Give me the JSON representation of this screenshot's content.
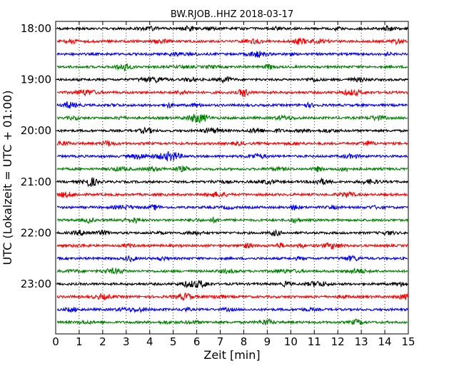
{
  "chart_data": {
    "type": "line",
    "title": "BW.RJOB..HHZ 2018-03-17",
    "xlabel": "Zeit  [min]",
    "ylabel": "UTC (Lokalzeit = UTC + 01:00)",
    "xlim": [
      0,
      15
    ],
    "x_ticks": [
      0,
      1,
      2,
      3,
      4,
      5,
      6,
      7,
      8,
      9,
      10,
      11,
      12,
      13,
      14,
      15
    ],
    "x_tick_labels": [
      "0",
      "1",
      "2",
      "3",
      "4",
      "5",
      "6",
      "7",
      "8",
      "9",
      "10",
      "11",
      "12",
      "13",
      "14",
      "15"
    ],
    "y_tick_labels": [
      "18:00",
      "19:00",
      "20:00",
      "21:00",
      "22:00",
      "23:00"
    ],
    "y_tick_positions": [
      0,
      4,
      8,
      12,
      16,
      20
    ],
    "trace_interval_minutes": 15,
    "trace_count": 24,
    "color_cycle": [
      "#000000",
      "#ff0000",
      "#0000ff",
      "#008000"
    ],
    "grid": "vertical dotted at each minute",
    "seismic_traces": [
      {
        "start": "18:00",
        "color": "#000000"
      },
      {
        "start": "18:15",
        "color": "#ff0000"
      },
      {
        "start": "18:30",
        "color": "#0000ff"
      },
      {
        "start": "18:45",
        "color": "#008000"
      },
      {
        "start": "19:00",
        "color": "#000000"
      },
      {
        "start": "19:15",
        "color": "#ff0000"
      },
      {
        "start": "19:30",
        "color": "#0000ff"
      },
      {
        "start": "19:45",
        "color": "#008000"
      },
      {
        "start": "20:00",
        "color": "#000000"
      },
      {
        "start": "20:15",
        "color": "#ff0000"
      },
      {
        "start": "20:30",
        "color": "#0000ff"
      },
      {
        "start": "20:45",
        "color": "#008000"
      },
      {
        "start": "21:00",
        "color": "#000000"
      },
      {
        "start": "21:15",
        "color": "#ff0000"
      },
      {
        "start": "21:30",
        "color": "#0000ff"
      },
      {
        "start": "21:45",
        "color": "#008000"
      },
      {
        "start": "22:00",
        "color": "#000000"
      },
      {
        "start": "22:15",
        "color": "#ff0000"
      },
      {
        "start": "22:30",
        "color": "#0000ff"
      },
      {
        "start": "22:45",
        "color": "#008000"
      },
      {
        "start": "23:00",
        "color": "#000000"
      },
      {
        "start": "23:15",
        "color": "#ff0000"
      },
      {
        "start": "23:30",
        "color": "#0000ff"
      },
      {
        "start": "23:45",
        "color": "#008000"
      }
    ]
  }
}
